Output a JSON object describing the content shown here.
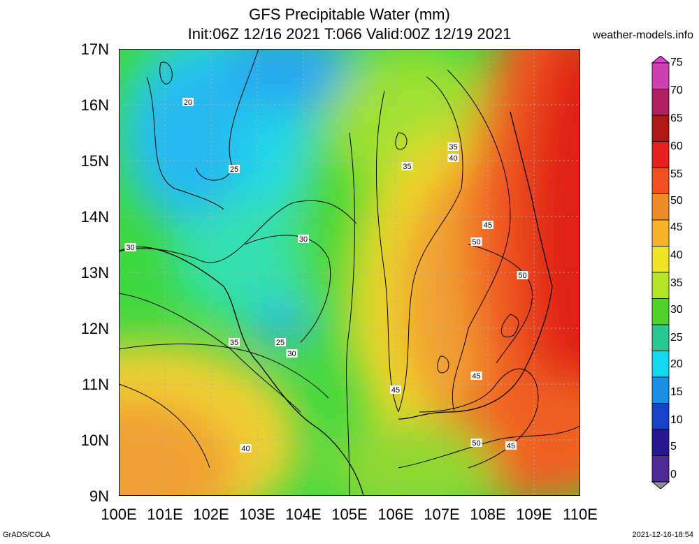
{
  "title": {
    "line1": "GFS Precipitable Water (mm)",
    "line2": "Init:06Z 12/16 2021 T:066 Valid:00Z 12/19 2021"
  },
  "site": "weather-models.info",
  "footer": {
    "left": "GrADS/COLA",
    "right": "2021-12-16-18:54"
  },
  "axes": {
    "lat_labels": [
      "17N",
      "16N",
      "15N",
      "14N",
      "13N",
      "12N",
      "11N",
      "10N",
      "9N"
    ],
    "lon_labels": [
      "100E",
      "101E",
      "102E",
      "103E",
      "104E",
      "105E",
      "106E",
      "107E",
      "108E",
      "109E",
      "110E"
    ]
  },
  "colorbar": {
    "labels": [
      "75",
      "70",
      "65",
      "60",
      "55",
      "50",
      "45",
      "40",
      "35",
      "30",
      "25",
      "20",
      "15",
      "10",
      "5",
      "0"
    ],
    "colors": [
      "#d040b0",
      "#b02060",
      "#b01818",
      "#e82020",
      "#f05020",
      "#f08c28",
      "#f8b428",
      "#f0e628",
      "#b4e628",
      "#50d228",
      "#28c890",
      "#10d8f0",
      "#1890e8",
      "#1840c8",
      "#281890",
      "#502898"
    ]
  },
  "contours": [
    {
      "label": "20",
      "lon": 101.5,
      "lat": 16.05
    },
    {
      "label": "25",
      "lon": 102.5,
      "lat": 14.85
    },
    {
      "label": "30",
      "lon": 100.25,
      "lat": 13.45
    },
    {
      "label": "30",
      "lon": 104.0,
      "lat": 13.6
    },
    {
      "label": "25",
      "lon": 103.5,
      "lat": 11.75
    },
    {
      "label": "30",
      "lon": 103.75,
      "lat": 11.55
    },
    {
      "label": "35",
      "lon": 102.5,
      "lat": 11.75
    },
    {
      "label": "35",
      "lon": 107.25,
      "lat": 15.25
    },
    {
      "label": "40",
      "lon": 107.25,
      "lat": 15.05
    },
    {
      "label": "35",
      "lon": 106.25,
      "lat": 14.9
    },
    {
      "label": "45",
      "lon": 108.0,
      "lat": 13.85
    },
    {
      "label": "50",
      "lon": 107.75,
      "lat": 13.55
    },
    {
      "label": "50",
      "lon": 108.75,
      "lat": 12.95
    },
    {
      "label": "45",
      "lon": 107.75,
      "lat": 11.15
    },
    {
      "label": "45",
      "lon": 106.0,
      "lat": 10.9
    },
    {
      "label": "50",
      "lon": 107.75,
      "lat": 9.95
    },
    {
      "label": "45",
      "lon": 108.5,
      "lat": 9.9
    },
    {
      "label": "40",
      "lon": 102.75,
      "lat": 9.85
    }
  ]
}
